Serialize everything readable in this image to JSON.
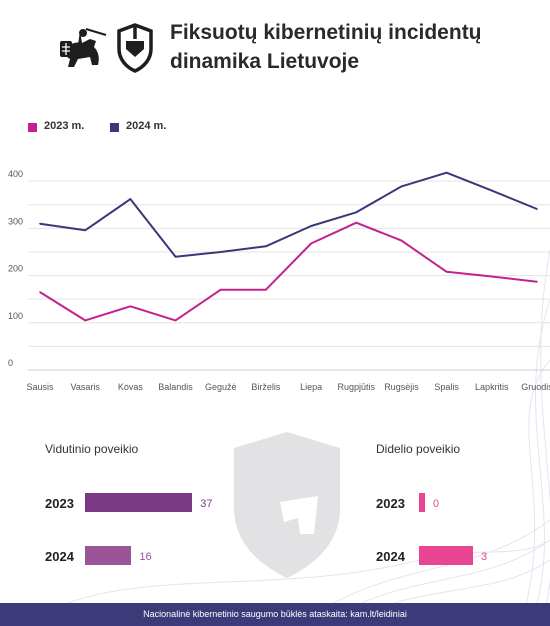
{
  "header": {
    "title": "Fiksuotų kibernetinių incidentų dinamika Lietuvoje"
  },
  "colors": {
    "series_2023": "#c4218f",
    "series_2024": "#38387c",
    "bar_medium": "#7b3a86",
    "bar_medium_2024": "#9a5598",
    "bar_high": "#e94592",
    "footer_bg": "#3d3a7a"
  },
  "icons": [
    "coat-of-arms-icon",
    "shield-logo-icon"
  ],
  "chart_data": {
    "type": "line",
    "categories": [
      "Sausis",
      "Vasaris",
      "Kovas",
      "Balandis",
      "Gegužė",
      "Birželis",
      "Liepa",
      "Rugpjūtis",
      "Rugsėjis",
      "Spalis",
      "Lapkritis",
      "Gruodis"
    ],
    "series": [
      {
        "name": "2023 m.",
        "values": [
          165,
          105,
          135,
          105,
          170,
          170,
          268,
          312,
          274,
          208,
          198,
          187
        ]
      },
      {
        "name": "2024 m.",
        "values": [
          310,
          296,
          362,
          240,
          250,
          262,
          305,
          334,
          389,
          418,
          380,
          341
        ]
      }
    ],
    "yticks": [
      0,
      100,
      200,
      300,
      400
    ],
    "ylim": [
      0,
      430
    ],
    "grid": true,
    "legend": "top-left"
  },
  "impact": {
    "medium": {
      "title": "Vidutinio poveikio",
      "rows": [
        {
          "year": "2023",
          "value": 37
        },
        {
          "year": "2024",
          "value": 16
        }
      ]
    },
    "high": {
      "title": "Didelio poveikio",
      "rows": [
        {
          "year": "2023",
          "value": 0
        },
        {
          "year": "2024",
          "value": 3
        }
      ]
    }
  },
  "footer": {
    "text": "Nacionalinė kibernetinio saugumo būklės ataskaita: kam.lt/leidiniai"
  }
}
